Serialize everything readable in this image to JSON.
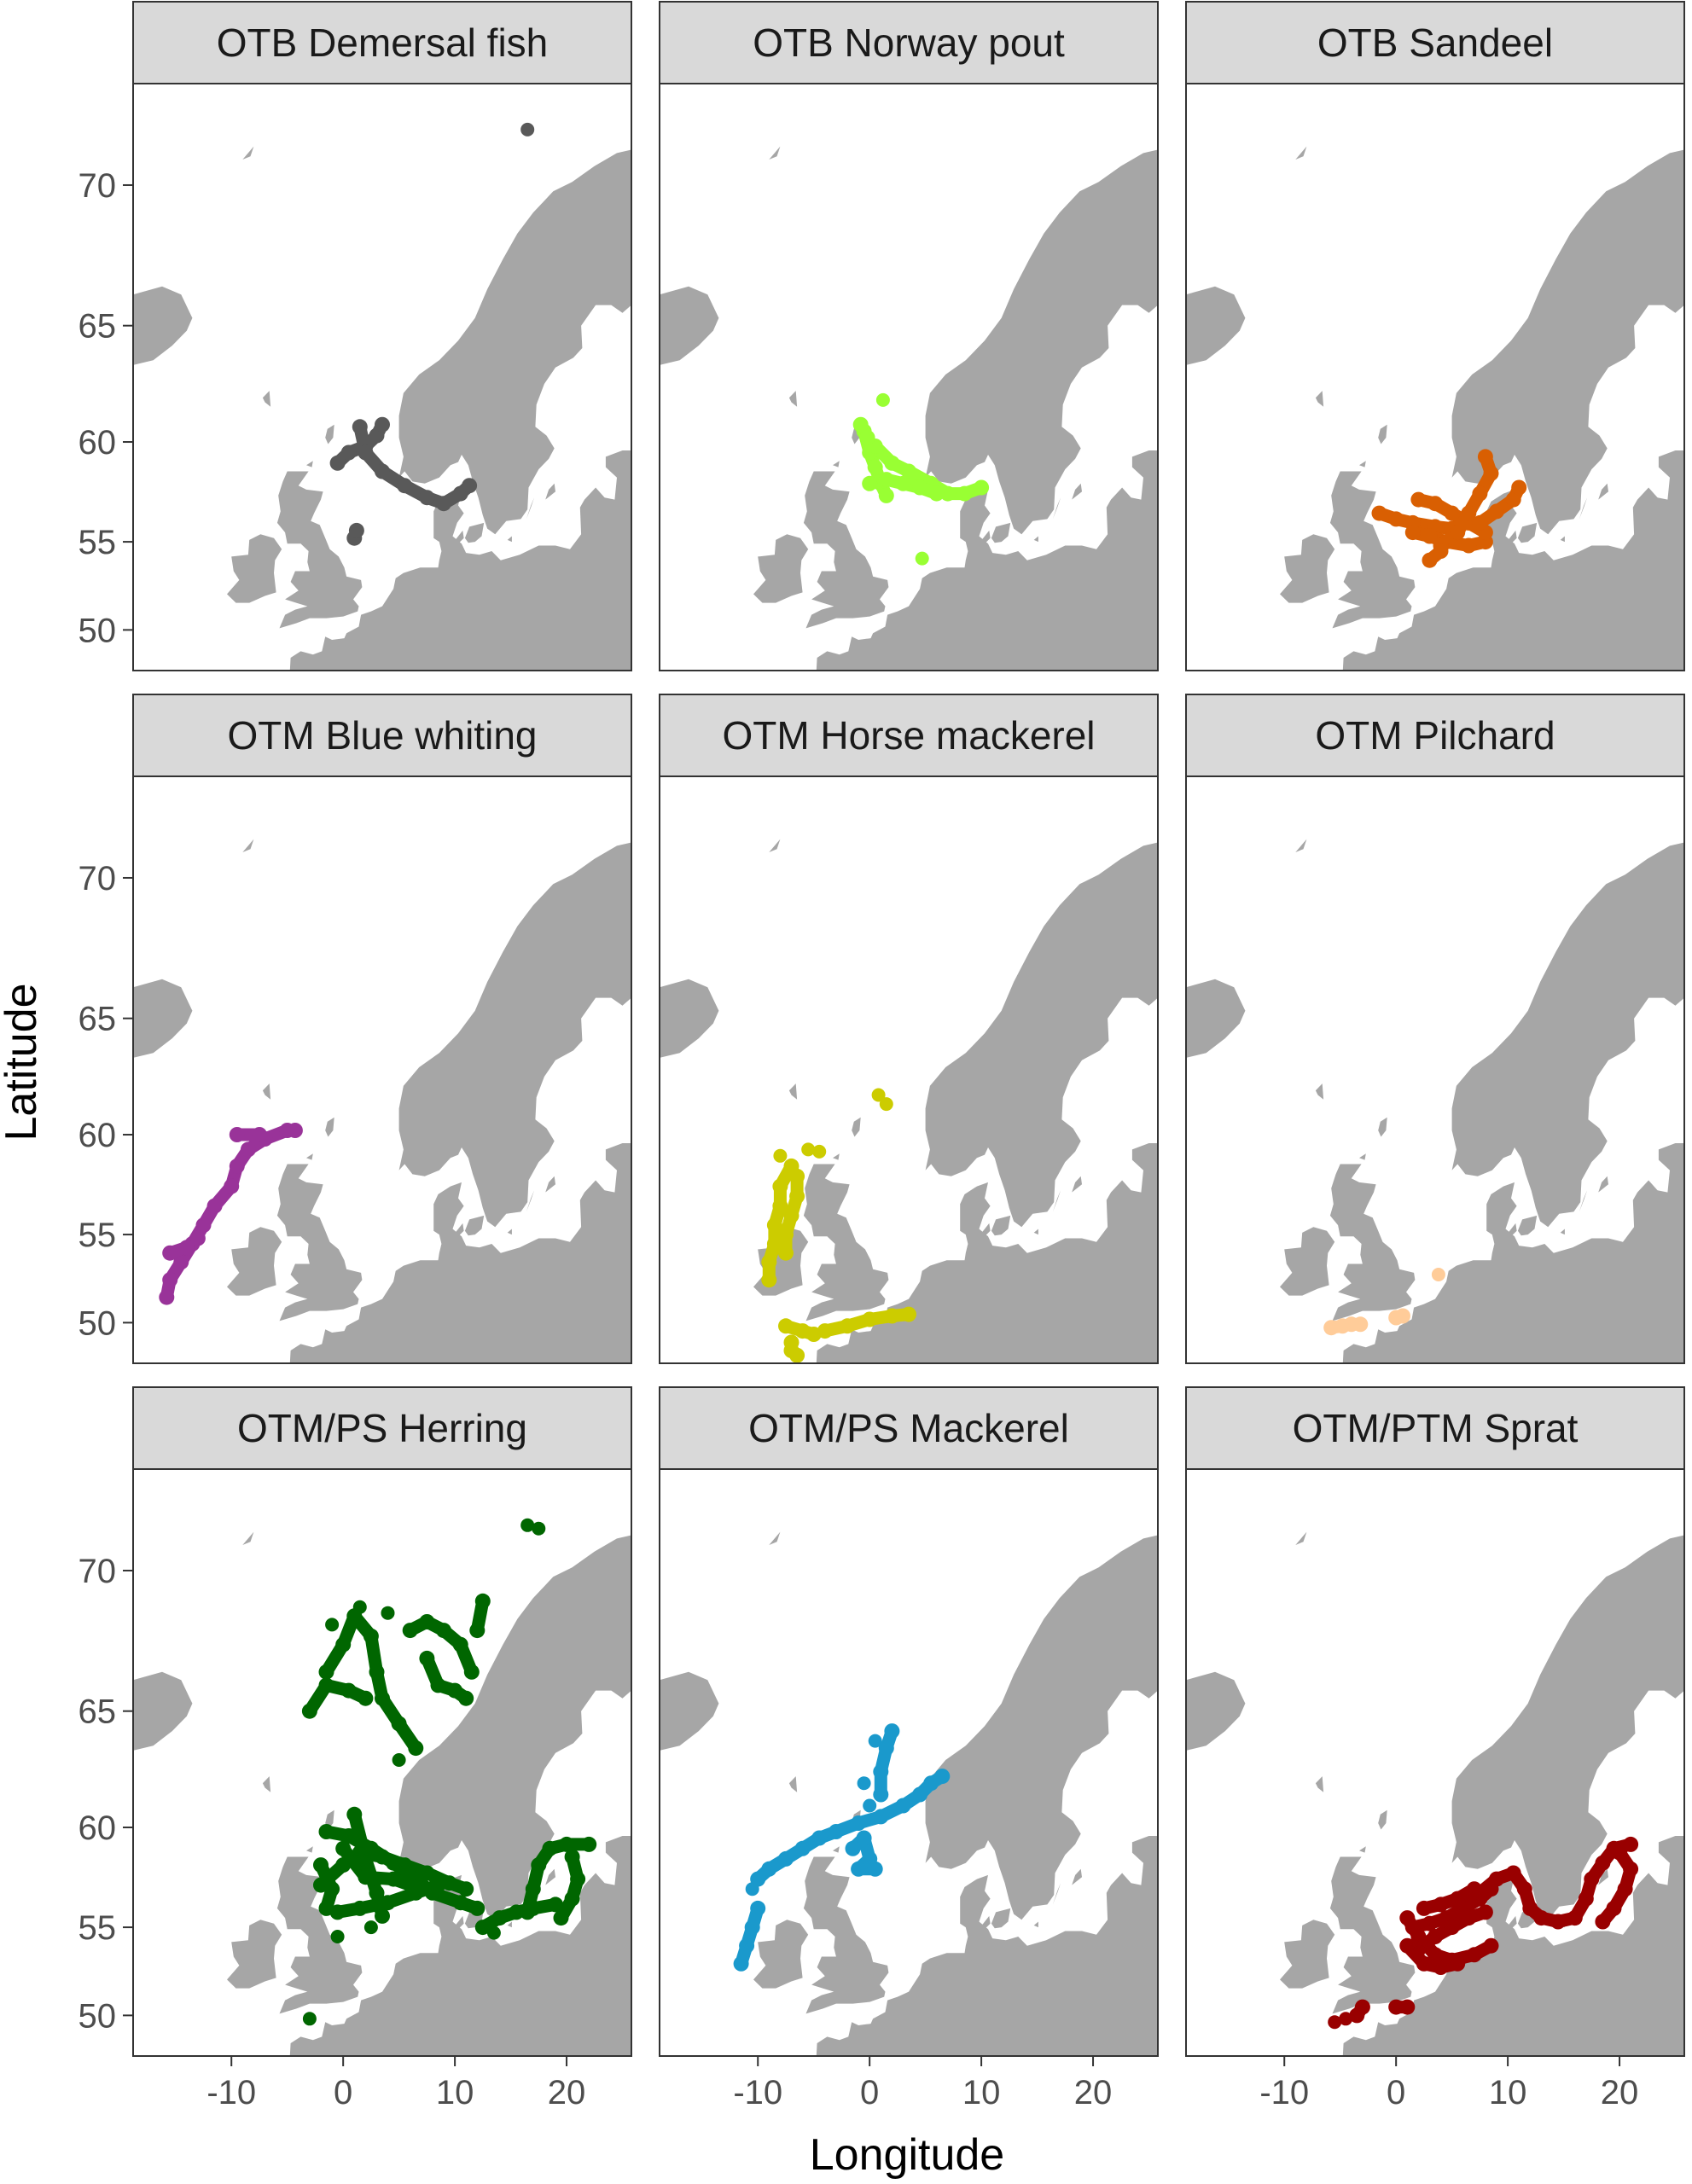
{
  "figure": {
    "x_axis_title": "Longitude",
    "y_axis_title": "Latitude",
    "x_ticks": [
      -10,
      0,
      10,
      20
    ],
    "y_ticks": [
      50,
      55,
      60,
      65,
      70
    ],
    "land_color": "#a6a6a6",
    "sea_color": "#ffffff",
    "strip_color": "#d9d9d9"
  },
  "panels": [
    {
      "title": "OTB Demersal fish",
      "color": "#595959",
      "tracks": [
        [
          [
            -0.5,
            59.0
          ],
          [
            0.5,
            59.5
          ],
          [
            2.0,
            59.8
          ],
          [
            3.0,
            60.3
          ],
          [
            3.5,
            60.8
          ]
        ],
        [
          [
            1.5,
            60.7
          ],
          [
            2.0,
            59.5
          ],
          [
            3.5,
            58.6
          ],
          [
            5.5,
            57.9
          ],
          [
            7.5,
            57.3
          ],
          [
            9.0,
            57.0
          ],
          [
            10.5,
            57.5
          ],
          [
            11.3,
            57.9
          ]
        ],
        [
          [
            1.0,
            55.2
          ],
          [
            1.2,
            55.6
          ]
        ]
      ],
      "points": [
        [
          16.5,
          71.7
        ]
      ]
    },
    {
      "title": "OTB Norway pout",
      "color": "#99ff33",
      "tracks": [
        [
          [
            -0.5,
            60.5
          ],
          [
            0.0,
            59.5
          ],
          [
            0.5,
            58.8
          ],
          [
            1.0,
            58.0
          ],
          [
            1.5,
            57.4
          ]
        ],
        [
          [
            0.5,
            59.8
          ],
          [
            2.0,
            59.0
          ],
          [
            3.5,
            58.6
          ],
          [
            5.5,
            58.0
          ],
          [
            7.0,
            57.5
          ],
          [
            8.5,
            57.5
          ],
          [
            10.0,
            57.8
          ]
        ],
        [
          [
            0.0,
            58.0
          ],
          [
            1.5,
            58.2
          ],
          [
            3.0,
            58.0
          ],
          [
            4.5,
            57.8
          ],
          [
            6.0,
            57.5
          ]
        ],
        [
          [
            -0.8,
            60.8
          ],
          [
            -0.2,
            60.2
          ]
        ]
      ],
      "points": [
        [
          1.2,
          61.9
        ],
        [
          4.7,
          54.1
        ]
      ]
    },
    {
      "title": "OTB Sandeel",
      "color": "#d95f02",
      "tracks": [
        [
          [
            -1.5,
            56.5
          ],
          [
            0.0,
            56.2
          ],
          [
            1.5,
            56.0
          ],
          [
            3.5,
            55.8
          ],
          [
            5.0,
            55.7
          ]
        ],
        [
          [
            1.5,
            55.5
          ],
          [
            3.0,
            55.3
          ],
          [
            4.5,
            55.0
          ],
          [
            6.5,
            54.8
          ],
          [
            8.0,
            55.0
          ]
        ],
        [
          [
            2.0,
            57.2
          ],
          [
            3.5,
            57.0
          ],
          [
            5.0,
            56.5
          ],
          [
            6.5,
            56.0
          ],
          [
            8.0,
            55.5
          ]
        ],
        [
          [
            4.0,
            54.8
          ],
          [
            5.5,
            55.5
          ],
          [
            6.5,
            56.5
          ],
          [
            7.5,
            57.5
          ],
          [
            8.5,
            58.5
          ],
          [
            8.0,
            59.3
          ]
        ],
        [
          [
            7.5,
            56.0
          ],
          [
            9.0,
            56.6
          ],
          [
            10.5,
            57.2
          ],
          [
            11.0,
            57.8
          ]
        ],
        [
          [
            3.0,
            54.0
          ],
          [
            4.0,
            54.5
          ]
        ]
      ],
      "points": []
    },
    {
      "title": "OTM Blue whiting",
      "color": "#993399",
      "tracks": [
        [
          [
            -15.8,
            51.5
          ],
          [
            -15.5,
            52.5
          ],
          [
            -14.5,
            53.5
          ],
          [
            -13.5,
            54.5
          ],
          [
            -12.5,
            55.5
          ],
          [
            -11.5,
            56.5
          ],
          [
            -10.0,
            57.5
          ],
          [
            -9.5,
            58.5
          ],
          [
            -8.5,
            59.3
          ],
          [
            -7.0,
            59.8
          ],
          [
            -5.0,
            60.2
          ],
          [
            -4.3,
            60.2
          ]
        ],
        [
          [
            -15.5,
            54.0
          ],
          [
            -14.0,
            54.3
          ],
          [
            -13.0,
            54.8
          ]
        ],
        [
          [
            -9.5,
            60.0
          ],
          [
            -7.5,
            60.0
          ]
        ]
      ],
      "points": []
    },
    {
      "title": "OTM Horse mackerel",
      "color": "#cccc00",
      "tracks": [
        [
          [
            -9.0,
            52.5
          ],
          [
            -9.0,
            53.5
          ],
          [
            -8.5,
            54.5
          ],
          [
            -8.5,
            55.5
          ],
          [
            -8.0,
            56.5
          ],
          [
            -8.0,
            57.5
          ],
          [
            -7.0,
            58.5
          ]
        ],
        [
          [
            -6.5,
            58.0
          ],
          [
            -6.5,
            57.0
          ],
          [
            -7.0,
            56.0
          ],
          [
            -7.5,
            55.0
          ],
          [
            -7.5,
            54.0
          ]
        ],
        [
          [
            -7.5,
            49.8
          ],
          [
            -6.0,
            49.5
          ],
          [
            -5.0,
            49.3
          ]
        ],
        [
          [
            -4.0,
            49.5
          ],
          [
            -2.0,
            49.8
          ],
          [
            0.0,
            50.2
          ],
          [
            2.0,
            50.4
          ],
          [
            3.5,
            50.5
          ]
        ],
        [
          [
            -7.0,
            48.8
          ],
          [
            -7.0,
            48.3
          ],
          [
            -6.5,
            48.0
          ]
        ]
      ],
      "points": [
        [
          -5.5,
          59.3
        ],
        [
          -4.5,
          59.2
        ],
        [
          0.8,
          61.8
        ],
        [
          1.5,
          61.4
        ],
        [
          -8.0,
          59.0
        ]
      ]
    },
    {
      "title": "OTM Pilchard",
      "color": "#ffcc99",
      "tracks": [
        [
          [
            -5.8,
            49.7
          ],
          [
            -4.8,
            49.8
          ],
          [
            -4.0,
            49.9
          ],
          [
            -3.2,
            49.9
          ]
        ],
        [
          [
            0.0,
            50.3
          ],
          [
            0.6,
            50.4
          ]
        ]
      ],
      "points": [
        [
          3.8,
          52.8
        ]
      ]
    },
    {
      "title": "OTM/PS Herring",
      "color": "#006600",
      "tracks": [
        [
          [
            -2.0,
            57.2
          ],
          [
            0.0,
            58.2
          ],
          [
            1.5,
            58.8
          ],
          [
            3.5,
            58.6
          ],
          [
            5.5,
            58.2
          ],
          [
            7.5,
            57.8
          ],
          [
            9.5,
            57.3
          ],
          [
            11.0,
            57.0
          ]
        ],
        [
          [
            -1.5,
            59.8
          ],
          [
            0.5,
            59.6
          ],
          [
            2.5,
            59.0
          ],
          [
            4.5,
            58.3
          ],
          [
            6.5,
            57.5
          ],
          [
            8.0,
            56.8
          ],
          [
            10.5,
            56.3
          ],
          [
            12.0,
            56.0
          ]
        ],
        [
          [
            1.0,
            60.6
          ],
          [
            2.0,
            58.5
          ],
          [
            3.0,
            56.8
          ],
          [
            3.5,
            55.6
          ]
        ],
        [
          [
            -0.5,
            55.8
          ],
          [
            1.5,
            56.0
          ],
          [
            4.0,
            56.3
          ],
          [
            6.5,
            56.8
          ],
          [
            8.5,
            57.2
          ]
        ],
        [
          [
            0.0,
            59.0
          ],
          [
            2.0,
            57.6
          ],
          [
            4.5,
            57.5
          ],
          [
            7.0,
            57.0
          ]
        ],
        [
          [
            12.5,
            55.0
          ],
          [
            14.0,
            55.5
          ],
          [
            15.5,
            55.8
          ],
          [
            17.0,
            56.0
          ],
          [
            19.0,
            56.2
          ]
        ],
        [
          [
            16.5,
            55.8
          ],
          [
            17.0,
            57.0
          ],
          [
            17.5,
            58.2
          ],
          [
            18.5,
            59.0
          ],
          [
            20.0,
            59.2
          ],
          [
            22.0,
            59.2
          ]
        ],
        [
          [
            19.5,
            55.5
          ],
          [
            20.5,
            56.5
          ],
          [
            21.0,
            57.5
          ],
          [
            20.5,
            58.6
          ]
        ],
        [
          [
            -1.5,
            66.5
          ],
          [
            0.0,
            67.5
          ],
          [
            1.0,
            68.5
          ],
          [
            2.5,
            67.8
          ],
          [
            3.0,
            66.5
          ],
          [
            3.5,
            65.5
          ],
          [
            5.0,
            64.5
          ],
          [
            6.5,
            63.5
          ]
        ],
        [
          [
            -3.0,
            65.0
          ],
          [
            -1.5,
            66.0
          ],
          [
            0.5,
            65.8
          ],
          [
            2.0,
            65.5
          ]
        ],
        [
          [
            6.0,
            68.0
          ],
          [
            7.5,
            68.3
          ],
          [
            9.0,
            68.0
          ],
          [
            10.5,
            67.5
          ],
          [
            11.5,
            66.5
          ]
        ],
        [
          [
            7.5,
            67.0
          ],
          [
            8.5,
            66.0
          ],
          [
            10.0,
            65.8
          ],
          [
            11.0,
            65.5
          ]
        ],
        [
          [
            12.5,
            69.0
          ],
          [
            12.0,
            68.0
          ]
        ],
        [
          [
            -2.0,
            58.2
          ],
          [
            -1.0,
            57.0
          ],
          [
            -1.5,
            56.0
          ]
        ]
      ],
      "points": [
        [
          16.5,
          71.4
        ],
        [
          17.5,
          71.3
        ],
        [
          4.0,
          68.6
        ],
        [
          -1.0,
          68.2
        ],
        [
          1.5,
          68.8
        ],
        [
          5.0,
          63.0
        ],
        [
          -3.0,
          49.8
        ],
        [
          -0.5,
          54.5
        ],
        [
          2.5,
          55.0
        ],
        [
          13.5,
          54.7
        ]
      ]
    },
    {
      "title": "OTM/PS Mackerel",
      "color": "#1a99cc",
      "tracks": [
        [
          [
            -11.5,
            53.0
          ],
          [
            -11.0,
            54.0
          ],
          [
            -10.5,
            55.0
          ],
          [
            -10.0,
            56.0
          ]
        ],
        [
          [
            -10.0,
            57.5
          ],
          [
            -9.0,
            58.0
          ],
          [
            -7.5,
            58.5
          ],
          [
            -6.0,
            59.0
          ],
          [
            -4.5,
            59.5
          ],
          [
            -3.0,
            59.8
          ],
          [
            -1.0,
            60.2
          ],
          [
            1.0,
            60.5
          ],
          [
            3.0,
            61.0
          ],
          [
            4.5,
            61.5
          ],
          [
            5.5,
            62.0
          ],
          [
            6.5,
            62.3
          ]
        ],
        [
          [
            -1.5,
            59.0
          ],
          [
            -0.5,
            59.5
          ],
          [
            0.0,
            58.5
          ],
          [
            -1.0,
            58.0
          ],
          [
            0.5,
            58.0
          ]
        ],
        [
          [
            1.0,
            61.5
          ],
          [
            1.0,
            62.5
          ],
          [
            1.5,
            63.5
          ],
          [
            2.0,
            64.2
          ]
        ]
      ],
      "points": [
        [
          -0.5,
          62.0
        ],
        [
          0.0,
          61.0
        ],
        [
          0.5,
          63.8
        ],
        [
          -10.5,
          57.0
        ]
      ]
    },
    {
      "title": "OTM/PTM Sprat",
      "color": "#990000",
      "tracks": [
        [
          [
            1.0,
            55.5
          ],
          [
            2.0,
            54.5
          ],
          [
            3.5,
            53.5
          ],
          [
            5.0,
            53.2
          ],
          [
            7.0,
            53.5
          ],
          [
            8.5,
            54.0
          ]
        ],
        [
          [
            1.5,
            55.0
          ],
          [
            3.0,
            55.2
          ],
          [
            4.5,
            55.5
          ],
          [
            6.0,
            56.0
          ],
          [
            7.5,
            56.5
          ],
          [
            8.5,
            57.0
          ]
        ],
        [
          [
            2.0,
            53.8
          ],
          [
            3.5,
            54.5
          ],
          [
            5.0,
            55.0
          ],
          [
            6.5,
            55.5
          ],
          [
            8.0,
            55.8
          ]
        ],
        [
          [
            1.0,
            54.0
          ],
          [
            2.5,
            53.0
          ],
          [
            4.0,
            52.8
          ],
          [
            5.5,
            53.0
          ]
        ],
        [
          [
            2.5,
            56.0
          ],
          [
            4.0,
            56.2
          ],
          [
            5.5,
            56.5
          ],
          [
            7.0,
            57.0
          ]
        ],
        [
          [
            7.5,
            56.8
          ],
          [
            9.0,
            57.5
          ],
          [
            10.5,
            57.8
          ],
          [
            11.5,
            57.0
          ],
          [
            12.0,
            56.0
          ],
          [
            13.0,
            55.5
          ],
          [
            14.5,
            55.3
          ],
          [
            16.0,
            55.5
          ]
        ],
        [
          [
            16.0,
            55.5
          ],
          [
            17.0,
            56.5
          ],
          [
            17.5,
            57.5
          ],
          [
            18.5,
            58.3
          ],
          [
            19.5,
            59.0
          ],
          [
            21.0,
            59.2
          ]
        ],
        [
          [
            18.5,
            55.3
          ],
          [
            19.5,
            56.0
          ],
          [
            20.5,
            57.0
          ],
          [
            21.0,
            58.0
          ],
          [
            20.0,
            58.8
          ]
        ],
        [
          [
            -3.5,
            50.0
          ],
          [
            -3.0,
            50.5
          ]
        ],
        [
          [
            0.0,
            50.5
          ],
          [
            1.0,
            50.5
          ]
        ]
      ],
      "points": [
        [
          -5.5,
          49.6
        ],
        [
          -4.5,
          49.8
        ]
      ]
    }
  ]
}
